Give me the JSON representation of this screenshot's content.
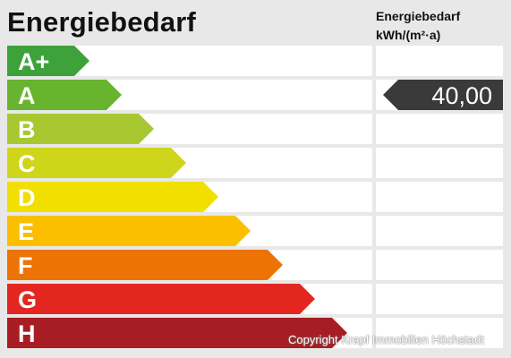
{
  "title": "Energiebedarf",
  "header_right": {
    "line1": "Energiebedarf",
    "line2": "kWh/(m²·a)"
  },
  "classes": [
    {
      "label": "A+",
      "color": "#3ea23b",
      "length": 92
    },
    {
      "label": "A",
      "color": "#68b42e",
      "length": 128
    },
    {
      "label": "B",
      "color": "#a8c832",
      "length": 164
    },
    {
      "label": "C",
      "color": "#cfd51a",
      "length": 200
    },
    {
      "label": "D",
      "color": "#f1df00",
      "length": 236
    },
    {
      "label": "E",
      "color": "#fbbf00",
      "length": 272
    },
    {
      "label": "F",
      "color": "#ed7305",
      "length": 308
    },
    {
      "label": "G",
      "color": "#e3261f",
      "length": 344
    },
    {
      "label": "H",
      "color": "#a81d23",
      "length": 380
    }
  ],
  "current_value": {
    "text": "40,00",
    "class_index": 1,
    "color": "#3a3a3a"
  },
  "copyright": "Copyright Krapf Immobilien Höchstadt"
}
